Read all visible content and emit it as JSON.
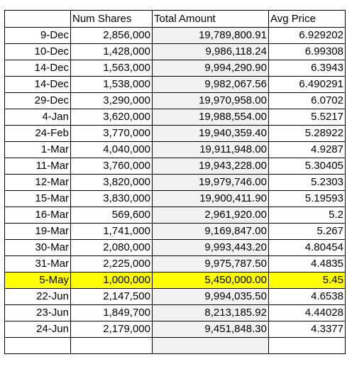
{
  "header": {
    "col_date": "",
    "col_shares": "Num Shares",
    "col_total": "Total Amount",
    "col_avg": "Avg Price"
  },
  "highlight_color": "#ffff00",
  "rows": [
    {
      "date": "9-Dec",
      "shares": "2,856,000",
      "total": "19,789,800.91",
      "avg": "6.929202"
    },
    {
      "date": "10-Dec",
      "shares": "1,428,000",
      "total": "9,986,118.24",
      "avg": "6.99308"
    },
    {
      "date": "14-Dec",
      "shares": "1,563,000",
      "total": "9,994,290.90",
      "avg": "6.3943"
    },
    {
      "date": "14-Dec",
      "shares": "1,538,000",
      "total": "9,982,067.56",
      "avg": "6.490291"
    },
    {
      "date": "29-Dec",
      "shares": "3,290,000",
      "total": "19,970,958.00",
      "avg": "6.0702"
    },
    {
      "date": "4-Jan",
      "shares": "3,620,000",
      "total": "19,988,554.00",
      "avg": "5.5217"
    },
    {
      "date": "24-Feb",
      "shares": "3,770,000",
      "total": "19,940,359.40",
      "avg": "5.28922"
    },
    {
      "date": "1-Mar",
      "shares": "4,040,000",
      "total": "19,911,948.00",
      "avg": "4.9287"
    },
    {
      "date": "11-Mar",
      "shares": "3,760,000",
      "total": "19,943,228.00",
      "avg": "5.30405"
    },
    {
      "date": "12-Mar",
      "shares": "3,820,000",
      "total": "19,979,746.00",
      "avg": "5.2303"
    },
    {
      "date": "15-Mar",
      "shares": "3,830,000",
      "total": "19,900,411.90",
      "avg": "5.19593"
    },
    {
      "date": "16-Mar",
      "shares": "569,600",
      "total": "2,961,920.00",
      "avg": "5.2"
    },
    {
      "date": "19-Mar",
      "shares": "1,741,000",
      "total": "9,169,847.00",
      "avg": "5.267"
    },
    {
      "date": "30-Mar",
      "shares": "2,080,000",
      "total": "9,993,443.20",
      "avg": "4.80454"
    },
    {
      "date": "31-Mar",
      "shares": "2,225,000",
      "total": "9,975,787.50",
      "avg": "4.4835"
    },
    {
      "date": "5-May",
      "shares": "1,000,000",
      "total": "5,450,000.00",
      "avg": "5.45",
      "highlighted": true
    },
    {
      "date": "22-Jun",
      "shares": "2,147,500",
      "total": "9,994,035.50",
      "avg": "4.6538"
    },
    {
      "date": "23-Jun",
      "shares": "1,849,700",
      "total": "8,213,185.92",
      "avg": "4.44028"
    },
    {
      "date": "24-Jun",
      "shares": "2,179,000",
      "total": "9,451,848.30",
      "avg": "4.3377"
    },
    {
      "date": "",
      "shares": "",
      "total": "",
      "avg": ""
    }
  ]
}
